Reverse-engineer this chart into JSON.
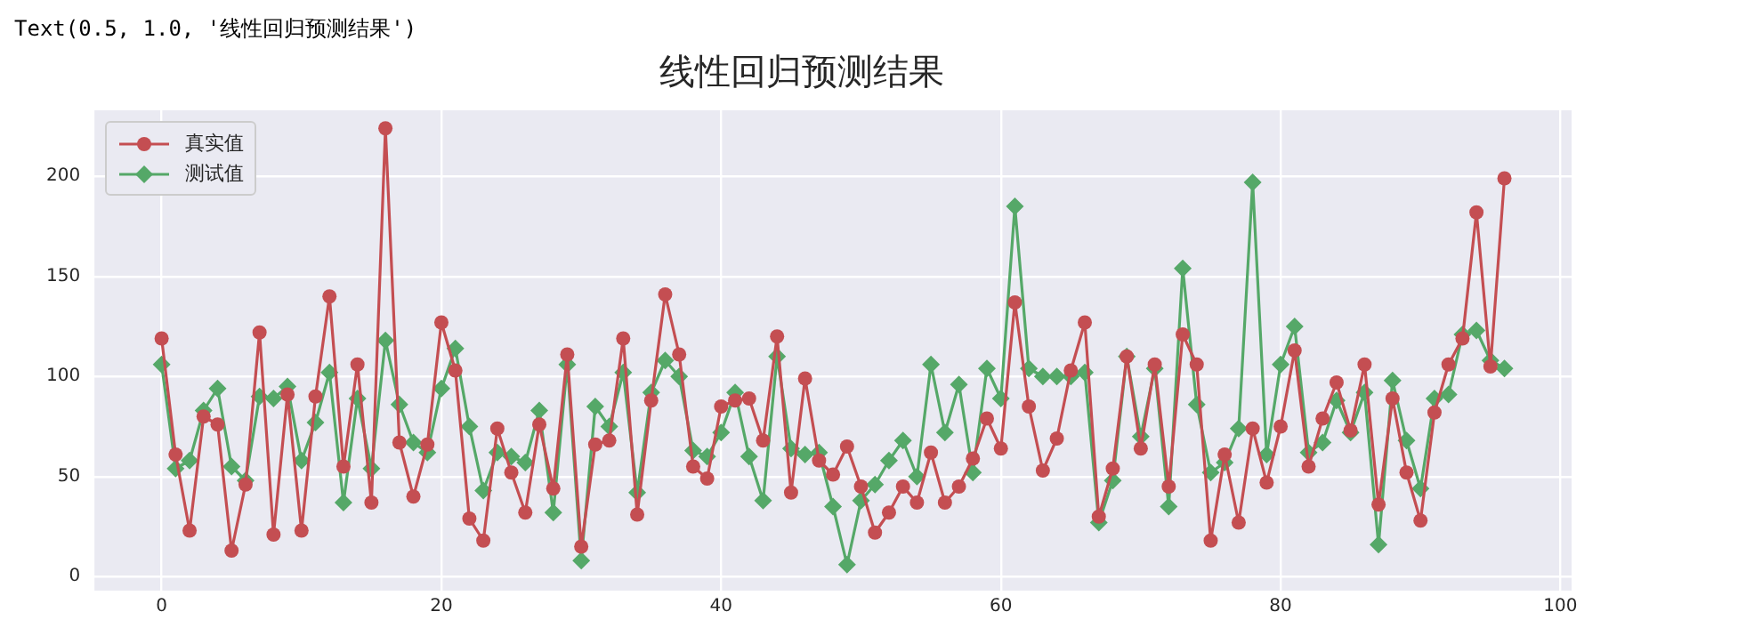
{
  "chart_data": {
    "type": "line",
    "title": "线性回归预测结果",
    "annotations": [
      "Text(0.5, 1.0, '线性回归预测结果')"
    ],
    "x": [
      0,
      1,
      2,
      3,
      4,
      5,
      6,
      7,
      8,
      9,
      10,
      11,
      12,
      13,
      14,
      15,
      16,
      17,
      18,
      19,
      20,
      21,
      22,
      23,
      24,
      25,
      26,
      27,
      28,
      29,
      30,
      31,
      32,
      33,
      34,
      35,
      36,
      37,
      38,
      39,
      40,
      41,
      42,
      43,
      44,
      45,
      46,
      47,
      48,
      49,
      50,
      51,
      52,
      53,
      54,
      55,
      56,
      57,
      58,
      59,
      60,
      61,
      62,
      63,
      64,
      65,
      66,
      67,
      68,
      69,
      70,
      71,
      72,
      73,
      74,
      75,
      76,
      77,
      78,
      79,
      80,
      81,
      82,
      83,
      84,
      85,
      86,
      87,
      88,
      89,
      90,
      91,
      92,
      93,
      94,
      95,
      96
    ],
    "series": [
      {
        "name": "真实值",
        "color": "#c44e52",
        "marker": "circle",
        "values": [
          119,
          61,
          23,
          80,
          76,
          13,
          46,
          122,
          21,
          91,
          23,
          90,
          140,
          55,
          106,
          37,
          224,
          67,
          40,
          66,
          127,
          103,
          29,
          18,
          74,
          52,
          32,
          76,
          44,
          111,
          15,
          66,
          68,
          119,
          31,
          88,
          141,
          111,
          55,
          49,
          85,
          88,
          89,
          68,
          120,
          42,
          99,
          58,
          51,
          65,
          45,
          22,
          32,
          45,
          37,
          62,
          37,
          45,
          59,
          79,
          64,
          137,
          85,
          53,
          69,
          103,
          127,
          30,
          54,
          110,
          64,
          106,
          45,
          121,
          106,
          18,
          61,
          27,
          74,
          47,
          75,
          113,
          55,
          79,
          97,
          73,
          106,
          36,
          89,
          52,
          28,
          82,
          106,
          119,
          182,
          105,
          199
        ]
      },
      {
        "name": "测试值",
        "color": "#55a868",
        "marker": "diamond",
        "values": [
          106,
          54,
          58,
          83,
          94,
          55,
          48,
          90,
          89,
          95,
          58,
          77,
          102,
          37,
          89,
          54,
          118,
          86,
          67,
          62,
          94,
          114,
          75,
          43,
          62,
          60,
          57,
          83,
          32,
          106,
          8,
          85,
          75,
          102,
          42,
          92,
          108,
          100,
          63,
          60,
          72,
          92,
          60,
          38,
          110,
          64,
          61,
          62,
          35,
          6,
          38,
          46,
          58,
          68,
          50,
          106,
          72,
          96,
          52,
          104,
          89,
          185,
          104,
          100,
          100,
          100,
          102,
          27,
          48,
          110,
          70,
          104,
          35,
          154,
          86,
          52,
          57,
          74,
          197,
          61,
          106,
          125,
          62,
          67,
          88,
          72,
          92,
          16,
          98,
          68,
          44,
          89,
          91,
          121,
          123,
          108,
          104
        ]
      }
    ],
    "xlim": [
      -4.8,
      100.8
    ],
    "ylim": [
      -7,
      233
    ],
    "xticks": [
      0,
      20,
      40,
      60,
      80,
      100
    ],
    "yticks": [
      0,
      50,
      100,
      150,
      200
    ],
    "grid": true,
    "legend": "top left",
    "line_style": "solid"
  }
}
